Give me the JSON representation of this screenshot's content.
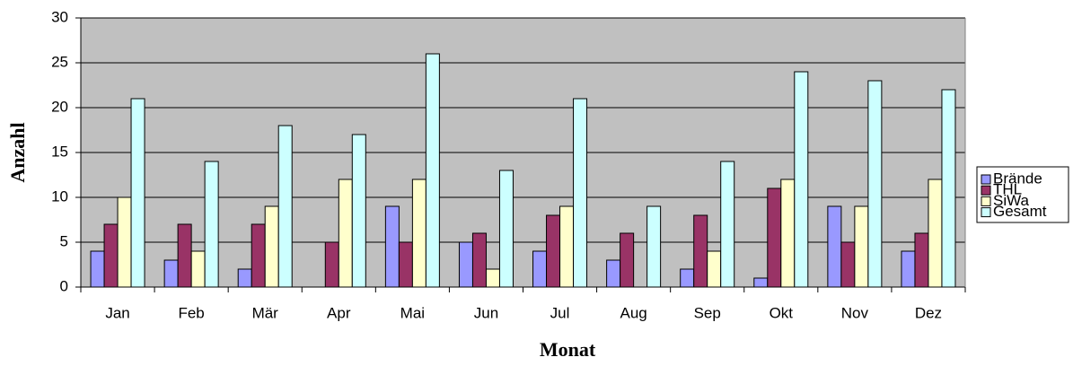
{
  "chart_data": {
    "type": "bar",
    "x_label": "Monat",
    "y_label": "Anzahl",
    "categories": [
      "Jan",
      "Feb",
      "Mär",
      "Apr",
      "Mai",
      "Jun",
      "Jul",
      "Aug",
      "Sep",
      "Okt",
      "Nov",
      "Dez"
    ],
    "series": [
      {
        "name": "Brände",
        "color": "#9999ff",
        "values": [
          4,
          3,
          2,
          0,
          9,
          5,
          4,
          3,
          2,
          1,
          9,
          4
        ]
      },
      {
        "name": "THL",
        "color": "#993366",
        "values": [
          7,
          7,
          7,
          5,
          5,
          6,
          8,
          6,
          8,
          11,
          5,
          6
        ]
      },
      {
        "name": "SiWa",
        "color": "#ffffcc",
        "values": [
          10,
          4,
          9,
          12,
          12,
          2,
          9,
          0,
          4,
          12,
          9,
          12
        ]
      },
      {
        "name": "Gesamt",
        "color": "#ccffff",
        "values": [
          21,
          14,
          18,
          17,
          26,
          13,
          21,
          9,
          14,
          24,
          23,
          22
        ]
      }
    ],
    "ylim": [
      0,
      30
    ],
    "yticks": [
      0,
      5,
      10,
      15,
      20,
      25,
      30
    ],
    "grid": true,
    "legend": "right"
  }
}
